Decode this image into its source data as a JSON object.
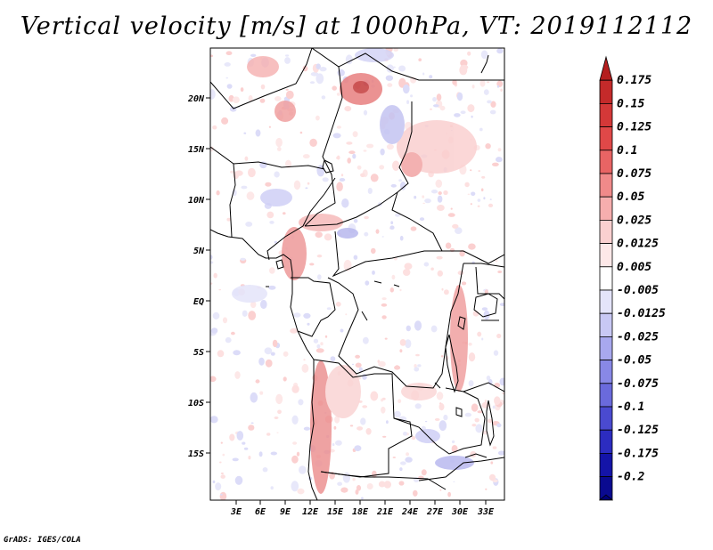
{
  "title": "Vertical velocity [m/s] at 1000hPa, VT: 2019112112",
  "credit": "GrADS: IGES/COLA",
  "map": {
    "lat_ticks": [
      "20N",
      "15N",
      "10N",
      "5N",
      "EQ",
      "5S",
      "10S",
      "15S"
    ],
    "lon_ticks": [
      "3E",
      "6E",
      "9E",
      "12E",
      "15E",
      "18E",
      "21E",
      "24E",
      "27E",
      "30E",
      "33E"
    ]
  },
  "colorbar": {
    "labels": [
      "0.175",
      "0.15",
      "0.125",
      "0.1",
      "0.075",
      "0.05",
      "0.025",
      "0.0125",
      "0.005",
      "-0.005",
      "-0.0125",
      "-0.025",
      "-0.05",
      "-0.075",
      "-0.1",
      "-0.125",
      "-0.175",
      "-0.2"
    ],
    "colors": [
      "#b41e1e",
      "#c42a2a",
      "#d43838",
      "#e04848",
      "#e86464",
      "#f08a8a",
      "#f6aeae",
      "#fad0d0",
      "#fde8e8",
      "#ffffff",
      "#e4e4fa",
      "#c8c8f4",
      "#a8a8ee",
      "#8888e6",
      "#6a6adc",
      "#4a4ad0",
      "#2c2cc0",
      "#1414a8",
      "#0a0a90",
      "#000078"
    ]
  }
}
